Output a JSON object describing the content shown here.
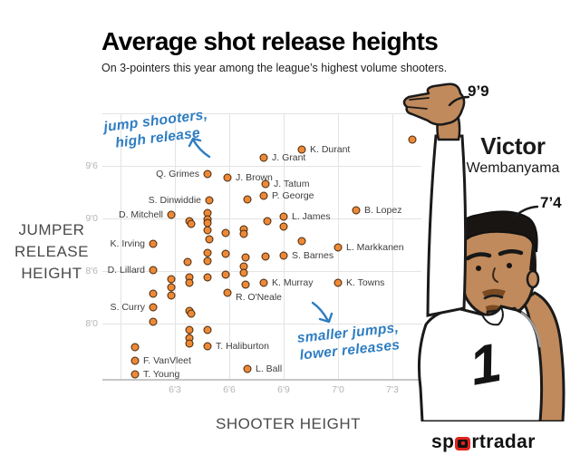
{
  "header": {
    "title": "Average shot release heights",
    "subtitle": "On 3-pointers this year among the league’s highest volume shooters."
  },
  "colors": {
    "annotation_blue": "#2d7dc1",
    "dot_fill": "#ed8936",
    "dot_stroke": "#43270d",
    "logo_red": "#e0231c",
    "skin": "#c08a5c",
    "hair": "#181512"
  },
  "chart_data": {
    "type": "scatter",
    "title": "Average shot release heights",
    "xlabel": "SHOOTER HEIGHT",
    "ylabel": "JUMPER RELEASE HEIGHT",
    "units": "inches (shown as feet'inches)",
    "xlim": [
      71,
      88.6
    ],
    "ylim": [
      89.5,
      120
    ],
    "grid": true,
    "x_ticks": [
      {
        "value": 72,
        "label": ""
      },
      {
        "value": 75,
        "label": "6'3"
      },
      {
        "value": 78,
        "label": "6'6"
      },
      {
        "value": 81,
        "label": "6'9"
      },
      {
        "value": 84,
        "label": "7'0"
      },
      {
        "value": 87,
        "label": "7'3"
      }
    ],
    "y_ticks": [
      {
        "value": 120,
        "label": ""
      },
      {
        "value": 114,
        "label": "9'6"
      },
      {
        "value": 108,
        "label": "9'0"
      },
      {
        "value": 102,
        "label": "8'6"
      },
      {
        "value": 96,
        "label": "8'0"
      }
    ],
    "points": [
      {
        "x": 82.0,
        "y": 115.9,
        "label": "K. Durant",
        "side": "right"
      },
      {
        "x": 79.9,
        "y": 114.9,
        "label": "J. Grant",
        "side": "right"
      },
      {
        "x": 76.8,
        "y": 113.1,
        "label": "Q. Grimes",
        "side": "left"
      },
      {
        "x": 77.9,
        "y": 112.7,
        "label": "J. Brown",
        "side": "right"
      },
      {
        "x": 80.0,
        "y": 111.9,
        "label": "J. Tatum",
        "side": "right"
      },
      {
        "x": 79.9,
        "y": 110.6,
        "label": "P. George",
        "side": "right"
      },
      {
        "x": 76.9,
        "y": 110.1,
        "label": "S. Dinwiddie",
        "side": "left"
      },
      {
        "x": 74.8,
        "y": 108.4,
        "label": "D. Mitchell",
        "side": "left"
      },
      {
        "x": 81.0,
        "y": 108.2,
        "label": "L. James",
        "side": "right"
      },
      {
        "x": 85.0,
        "y": 108.9,
        "label": "B. Lopez",
        "side": "right"
      },
      {
        "x": 73.8,
        "y": 105.1,
        "label": "K. Irving",
        "side": "left"
      },
      {
        "x": 84.0,
        "y": 104.7,
        "label": "L. Markkanen",
        "side": "right"
      },
      {
        "x": 81.0,
        "y": 103.8,
        "label": "S. Barnes",
        "side": "right"
      },
      {
        "x": 73.8,
        "y": 102.1,
        "label": "D. Lillard",
        "side": "left"
      },
      {
        "x": 79.9,
        "y": 100.7,
        "label": "K. Murray",
        "side": "right"
      },
      {
        "x": 84.0,
        "y": 100.7,
        "label": "K. Towns",
        "side": "right"
      },
      {
        "x": 77.9,
        "y": 99.5,
        "label": "R. O'Neale",
        "side": "right",
        "dy": 5
      },
      {
        "x": 73.8,
        "y": 97.9,
        "label": "S. Curry",
        "side": "left"
      },
      {
        "x": 76.8,
        "y": 93.4,
        "label": "T. Haliburton",
        "side": "right"
      },
      {
        "x": 72.8,
        "y": 91.8,
        "label": "F. VanVleet",
        "side": "right"
      },
      {
        "x": 79.0,
        "y": 90.8,
        "label": "L. Ball",
        "side": "right"
      },
      {
        "x": 72.8,
        "y": 90.2,
        "label": "T. Young",
        "side": "right"
      },
      {
        "x": 88.1,
        "y": 117.0
      },
      {
        "x": 79.0,
        "y": 110.2
      },
      {
        "x": 76.8,
        "y": 108.6
      },
      {
        "x": 76.8,
        "y": 107.9
      },
      {
        "x": 76.8,
        "y": 107.5
      },
      {
        "x": 76.8,
        "y": 106.7
      },
      {
        "x": 75.8,
        "y": 107.7
      },
      {
        "x": 75.9,
        "y": 107.4
      },
      {
        "x": 80.1,
        "y": 107.7
      },
      {
        "x": 81.0,
        "y": 107.1
      },
      {
        "x": 78.8,
        "y": 106.8
      },
      {
        "x": 78.8,
        "y": 106.2
      },
      {
        "x": 77.8,
        "y": 106.4
      },
      {
        "x": 76.9,
        "y": 105.6
      },
      {
        "x": 82.0,
        "y": 105.4
      },
      {
        "x": 76.8,
        "y": 104.1
      },
      {
        "x": 77.8,
        "y": 104.0
      },
      {
        "x": 80.0,
        "y": 103.7
      },
      {
        "x": 78.9,
        "y": 103.6
      },
      {
        "x": 75.7,
        "y": 103.0
      },
      {
        "x": 76.8,
        "y": 103.1
      },
      {
        "x": 78.8,
        "y": 102.5
      },
      {
        "x": 78.8,
        "y": 101.8
      },
      {
        "x": 77.8,
        "y": 101.6
      },
      {
        "x": 76.8,
        "y": 101.3
      },
      {
        "x": 74.8,
        "y": 101.1
      },
      {
        "x": 75.8,
        "y": 101.3
      },
      {
        "x": 75.8,
        "y": 100.7
      },
      {
        "x": 78.9,
        "y": 100.5
      },
      {
        "x": 74.8,
        "y": 100.1
      },
      {
        "x": 73.8,
        "y": 99.4
      },
      {
        "x": 74.8,
        "y": 99.2
      },
      {
        "x": 75.8,
        "y": 97.5
      },
      {
        "x": 75.9,
        "y": 97.2
      },
      {
        "x": 73.8,
        "y": 96.2
      },
      {
        "x": 75.8,
        "y": 95.3
      },
      {
        "x": 76.8,
        "y": 95.3
      },
      {
        "x": 75.8,
        "y": 94.4
      },
      {
        "x": 75.8,
        "y": 93.7
      },
      {
        "x": 72.8,
        "y": 93.3
      }
    ],
    "annotations": {
      "top": {
        "line1": "jump shooters,",
        "line2": "high release"
      },
      "bottom": {
        "line1": "smaller jumps,",
        "line2": "lower releases"
      }
    }
  },
  "illustration": {
    "reach_label": "9’9",
    "height_label": "7’4",
    "first_name": "Victor",
    "last_name": "Wembanyama",
    "jersey_number": "1"
  },
  "logo": {
    "pre": "sp",
    "mid": "rt",
    "bold": "radar"
  }
}
